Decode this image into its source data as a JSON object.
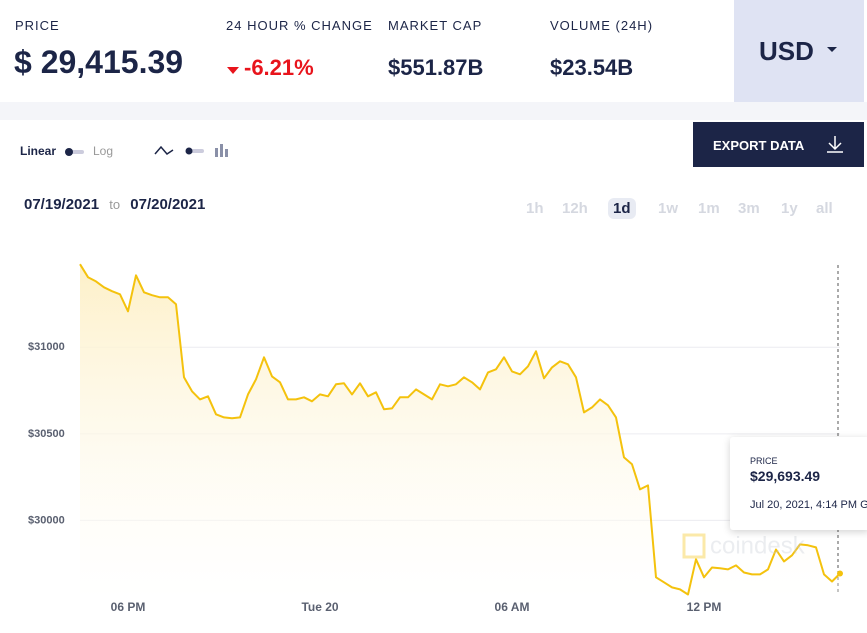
{
  "header": {
    "price_label": "PRICE",
    "price_symbol": "$",
    "price_value": "29,415.39",
    "change_label": "24 HOUR % CHANGE",
    "change_value": "-6.21%",
    "market_cap_label": "MARKET CAP",
    "market_cap_value": "$551.87B",
    "volume_label": "VOLUME (24H)",
    "volume_value": "$23.54B",
    "currency": "USD"
  },
  "controls": {
    "scale_linear": "Linear",
    "scale_log": "Log",
    "export": "EXPORT DATA",
    "date_from": "07/19/2021",
    "date_sep": "to",
    "date_to": "07/20/2021",
    "ranges": [
      "1h",
      "12h",
      "1d",
      "1w",
      "1m",
      "3m",
      "1y",
      "all"
    ],
    "active_range": "1d"
  },
  "chart_data": {
    "type": "line",
    "color": "#f4c20d",
    "grid": true,
    "watermark": "coindesk",
    "categories": [
      null,
      null,
      null,
      null,
      null,
      null,
      "06 PM",
      null,
      null,
      null,
      null,
      null,
      null,
      null,
      null,
      null,
      null,
      null,
      null,
      null,
      null,
      null,
      null,
      null,
      null,
      null,
      null,
      null,
      null,
      null,
      "Tue 20",
      null,
      null,
      null,
      null,
      null,
      null,
      null,
      null,
      null,
      null,
      null,
      null,
      null,
      null,
      null,
      null,
      null,
      null,
      null,
      null,
      null,
      null,
      null,
      "06 AM",
      null,
      null,
      null,
      null,
      null,
      null,
      null,
      null,
      null,
      null,
      null,
      null,
      null,
      null,
      null,
      null,
      null,
      null,
      null,
      null,
      null,
      null,
      null,
      "12 PM",
      null,
      null,
      null,
      null,
      null,
      null,
      null,
      null,
      null,
      null,
      null,
      null,
      null,
      null,
      null,
      null,
      null
    ],
    "values": [
      31480,
      31405,
      31381,
      31347,
      31324,
      31306,
      31208,
      31416,
      31318,
      31301,
      31289,
      31289,
      31249,
      30827,
      30746,
      30699,
      30717,
      30613,
      30595,
      30590,
      30595,
      30728,
      30815,
      30942,
      30832,
      30798,
      30699,
      30699,
      30711,
      30688,
      30728,
      30717,
      30786,
      30792,
      30728,
      30792,
      30717,
      30740,
      30642,
      30647,
      30711,
      30711,
      30757,
      30728,
      30699,
      30786,
      30775,
      30786,
      30827,
      30798,
      30757,
      30855,
      30873,
      30942,
      30861,
      30844,
      30890,
      30977,
      30821,
      30884,
      30919,
      30902,
      30827,
      30624,
      30653,
      30699,
      30665,
      30595,
      30364,
      30324,
      30179,
      30202,
      29671,
      29642,
      29613,
      29601,
      29572,
      29775,
      29671,
      29728,
      29723,
      29717,
      29740,
      29699,
      29688,
      29688,
      29717,
      29832,
      29763,
      29798,
      29861,
      29856,
      29844,
      29688,
      29647,
      29693
    ],
    "ylim": [
      29540,
      31620
    ],
    "yticks": [
      {
        "value": 30000,
        "label": "$30000"
      },
      {
        "value": 30500,
        "label": "$30500"
      },
      {
        "value": 31000,
        "label": "$31000"
      }
    ],
    "tooltip": {
      "label": "PRICE",
      "value": "$29,693.49",
      "time": "Jul 20, 2021, 4:14 PM G"
    }
  }
}
